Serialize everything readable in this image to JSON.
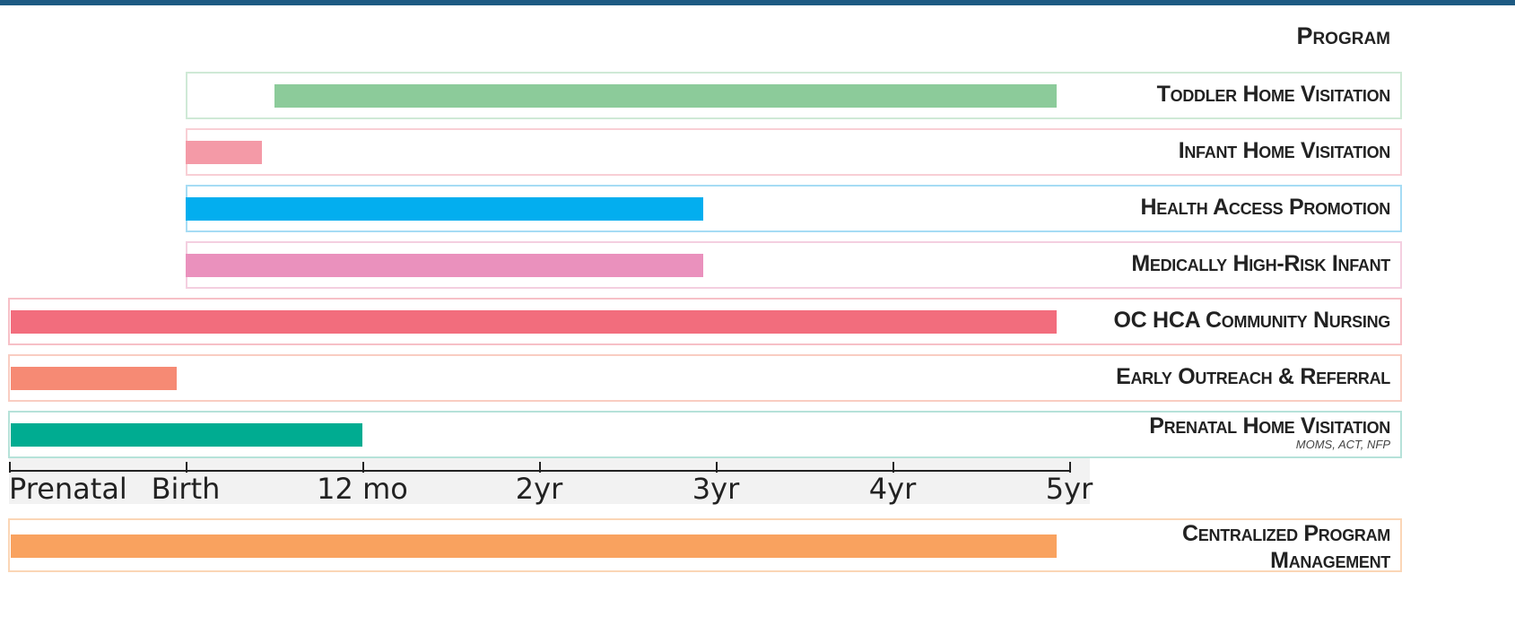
{
  "header": {
    "program_label": "Program"
  },
  "chart_data": {
    "type": "bar",
    "orientation": "horizontal-range",
    "axis": {
      "ticks": [
        "Prenatal",
        "Birth",
        "12 mo",
        "2yr",
        "3yr",
        "4yr",
        "5yr"
      ],
      "range": [
        "Prenatal",
        "5yr"
      ]
    },
    "series": [
      {
        "name": "Toddler Home Visitation",
        "start": 1.5,
        "end": 6.0,
        "color": "#8ccb9a",
        "frame_color": "#cfe9d6"
      },
      {
        "name": "Infant Home Visitation",
        "start": 1.0,
        "end": 1.5,
        "color": "#f49aa7",
        "frame_color": "#f8cfd5"
      },
      {
        "name": "Health Access Promotion",
        "start": 1.0,
        "end": 4.0,
        "color": "#03aeef",
        "frame_color": "#a6dcf4"
      },
      {
        "name": "Medically High-Risk Infant",
        "start": 1.0,
        "end": 4.0,
        "color": "#ea91bd",
        "frame_color": "#f4cfe0"
      },
      {
        "name": "OC HCA Community Nursing",
        "start": 0.0,
        "end": 6.0,
        "color": "#f26d7d",
        "frame_color": "#f7c0c7"
      },
      {
        "name": "Early Outreach & Referral",
        "start": 0.0,
        "end": 1.02,
        "color": "#f68a74",
        "frame_color": "#f9cdc2"
      },
      {
        "name": "Prenatal Home Visitation",
        "subtitle": "MOMS, ACT, NFP",
        "start": 0.0,
        "end": 2.07,
        "color": "#00ac91",
        "frame_color": "#b6e2d9"
      }
    ],
    "extra": {
      "name": "Centralized Program Management",
      "start": 0.0,
      "end": 6.0,
      "color": "#f9a25f",
      "frame_color": "#fbd6b6"
    }
  }
}
